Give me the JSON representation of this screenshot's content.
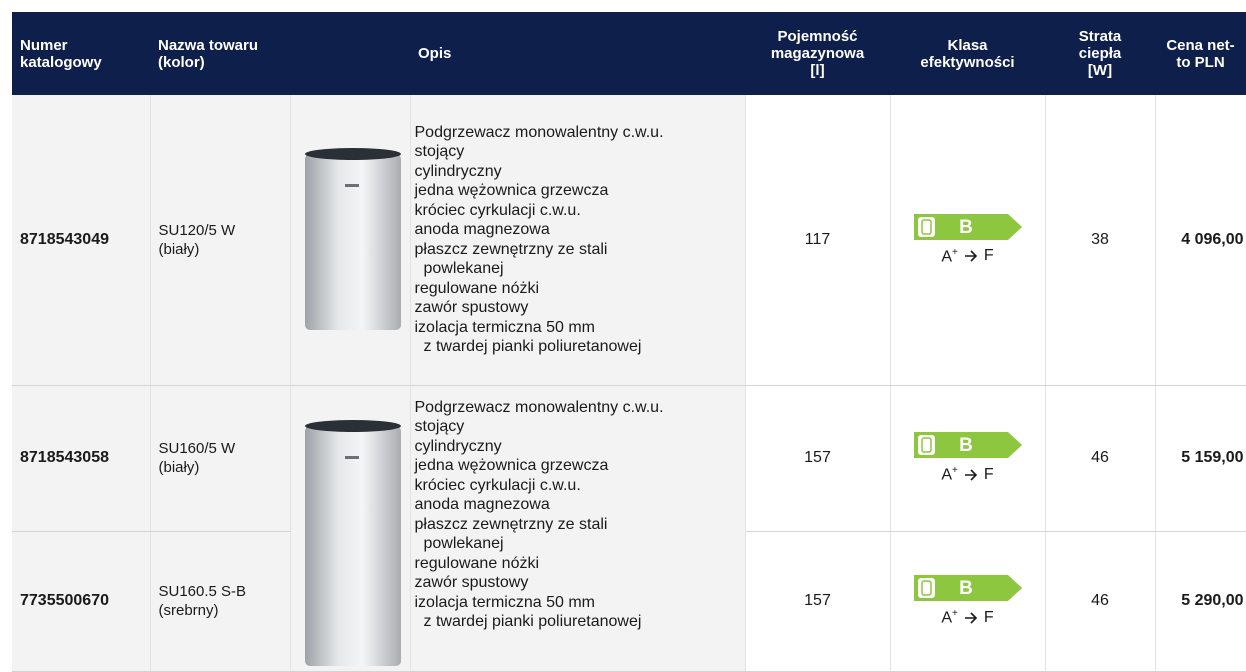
{
  "header": {
    "columns": [
      [
        "Numer",
        "katalogowy"
      ],
      [
        "Nazwa towaru",
        "(kolor)"
      ],
      [
        "Opis"
      ],
      [
        "Pojemność",
        "magazynowa",
        "[l]"
      ],
      [
        "Klasa",
        "efektywności"
      ],
      [
        "Strata",
        "ciepła",
        "[W]"
      ],
      [
        "Cena net-",
        "to PLN"
      ]
    ]
  },
  "table": {
    "rows": [
      {
        "catalog_number": "8718543049",
        "name": "SU120/5 W",
        "color": "(biały)",
        "capacity": 117,
        "efficiency": {
          "class": "B",
          "range_from": "A",
          "range_from_sup": "+",
          "range_to": "F"
        },
        "heat_loss": 38,
        "price": "4 096,00"
      },
      {
        "catalog_number": "8718543058",
        "name": "SU160/5 W",
        "color": "(biały)",
        "capacity": 157,
        "efficiency": {
          "class": "B",
          "range_from": "A",
          "range_from_sup": "+",
          "range_to": "F"
        },
        "heat_loss": 46,
        "price": "5 159,00"
      },
      {
        "catalog_number": "7735500670",
        "name": "SU160.5 S-B",
        "color": "(srebrny)",
        "capacity": 157,
        "efficiency": {
          "class": "B",
          "range_from": "A",
          "range_from_sup": "+",
          "range_to": "F"
        },
        "heat_loss": 46,
        "price": "5 290,00"
      }
    ]
  },
  "descriptions": [
    {
      "intro": "Podgrzewacz monowalentny c.w.u.",
      "items": [
        [
          "stojący"
        ],
        [
          "cylindryczny"
        ],
        [
          "jedna wężownica grzewcza"
        ],
        [
          "króciec cyrkulacji c.w.u."
        ],
        [
          "anoda magnezowa"
        ],
        [
          "płaszcz zewnętrzny ze stali",
          "powlekanej"
        ],
        [
          "regulowane nóżki"
        ],
        [
          "zawór spustowy"
        ],
        [
          "izolacja termiczna 50 mm",
          "z twardej pianki poliuretanowej"
        ]
      ]
    },
    {
      "intro": "Podgrzewacz monowalentny c.w.u.",
      "items": [
        [
          "stojący"
        ],
        [
          "cylindryczny"
        ],
        [
          "jedna wężownica grzewcza"
        ],
        [
          "króciec cyrkulacji c.w.u."
        ],
        [
          "anoda magnezowa"
        ],
        [
          "płaszcz zewnętrzny ze stali",
          "powlekanej"
        ],
        [
          "regulowane nóżki"
        ],
        [
          "zawór spustowy"
        ],
        [
          "izolacja termiczna 50 mm",
          "z twardej pianki poliuretanowej"
        ]
      ]
    }
  ]
}
